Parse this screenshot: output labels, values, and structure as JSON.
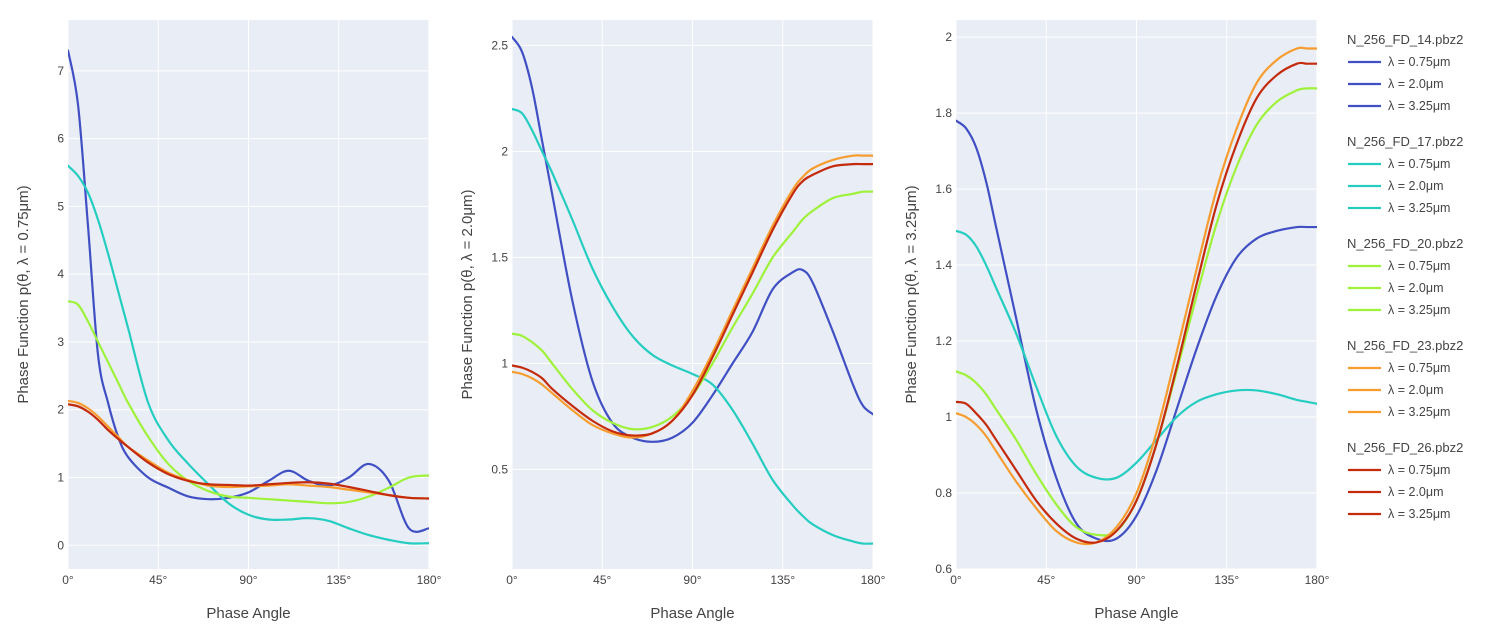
{
  "chart_data": {
    "type": "line",
    "x_unit": "°",
    "x_ticks": [
      0,
      45,
      90,
      135,
      180
    ],
    "x_tick_labels": [
      "0°",
      "45°",
      "90°",
      "135°",
      "180°"
    ],
    "x_range": [
      0,
      180
    ],
    "grid": true,
    "legend_position": "right",
    "colors": {
      "N_256_FD_14.pbz2": "#4050c4",
      "N_256_FD_17.pbz2": "#25cdc1",
      "N_256_FD_20.pbz2": "#9ef23a",
      "N_256_FD_23.pbz2": "#f79c2e",
      "N_256_FD_26.pbz2": "#c42a0c"
    },
    "legend": [
      {
        "title": "N_256_FD_14.pbz2",
        "items": [
          "λ = 0.75μm",
          "λ = 2.0μm",
          "λ = 3.25μm"
        ]
      },
      {
        "title": "N_256_FD_17.pbz2",
        "items": [
          "λ = 0.75μm",
          "λ = 2.0μm",
          "λ = 3.25μm"
        ]
      },
      {
        "title": "N_256_FD_20.pbz2",
        "items": [
          "λ = 0.75μm",
          "λ = 2.0μm",
          "λ = 3.25μm"
        ]
      },
      {
        "title": "N_256_FD_23.pbz2",
        "items": [
          "λ = 0.75μm",
          "λ = 2.0μm",
          "λ = 3.25μm"
        ]
      },
      {
        "title": "N_256_FD_26.pbz2",
        "items": [
          "λ = 0.75μm",
          "λ = 2.0μm",
          "λ = 3.25μm"
        ]
      }
    ],
    "panels": [
      {
        "xlabel": "Phase Angle",
        "ylabel": "Phase Function p(θ, λ = 0.75μm)",
        "ylim": [
          -0.35,
          7.75
        ],
        "y_ticks": [
          0,
          1,
          2,
          3,
          4,
          5,
          6,
          7
        ],
        "y_tick_labels": [
          "0",
          "1",
          "2",
          "3",
          "4",
          "5",
          "6",
          "7"
        ],
        "x": [
          0,
          5,
          10,
          15,
          20,
          25,
          30,
          40,
          50,
          60,
          70,
          80,
          90,
          100,
          110,
          120,
          130,
          140,
          150,
          160,
          170,
          180
        ],
        "series": [
          {
            "group": "N_256_FD_14.pbz2",
            "values": [
              7.3,
              6.5,
              4.7,
              2.8,
              2.1,
              1.6,
              1.3,
              1.0,
              0.85,
              0.72,
              0.68,
              0.7,
              0.78,
              0.95,
              1.1,
              0.95,
              0.88,
              1.0,
              1.2,
              0.95,
              0.25,
              0.25
            ]
          },
          {
            "group": "N_256_FD_17.pbz2",
            "values": [
              5.6,
              5.45,
              5.2,
              4.8,
              4.3,
              3.75,
              3.2,
              2.1,
              1.55,
              1.2,
              0.9,
              0.62,
              0.45,
              0.38,
              0.38,
              0.4,
              0.36,
              0.25,
              0.15,
              0.08,
              0.03,
              0.03
            ]
          },
          {
            "group": "N_256_FD_20.pbz2",
            "values": [
              3.6,
              3.55,
              3.3,
              3.0,
              2.7,
              2.4,
              2.1,
              1.6,
              1.2,
              0.95,
              0.8,
              0.72,
              0.7,
              0.68,
              0.66,
              0.64,
              0.62,
              0.64,
              0.72,
              0.85,
              1.0,
              1.03
            ]
          },
          {
            "group": "N_256_FD_23.pbz2",
            "values": [
              2.13,
              2.1,
              2.02,
              1.9,
              1.75,
              1.6,
              1.45,
              1.25,
              1.07,
              0.96,
              0.88,
              0.86,
              0.87,
              0.88,
              0.9,
              0.88,
              0.86,
              0.82,
              0.78,
              0.74,
              0.7,
              0.69
            ]
          },
          {
            "group": "N_256_FD_26.pbz2",
            "values": [
              2.08,
              2.05,
              1.97,
              1.85,
              1.7,
              1.57,
              1.45,
              1.22,
              1.05,
              0.95,
              0.9,
              0.89,
              0.88,
              0.9,
              0.92,
              0.93,
              0.91,
              0.86,
              0.8,
              0.74,
              0.7,
              0.69
            ]
          }
        ]
      },
      {
        "xlabel": "Phase Angle",
        "ylabel": "Phase Function p(θ, λ = 2.0μm)",
        "ylim": [
          0.03,
          2.62
        ],
        "y_ticks": [
          0.5,
          1,
          1.5,
          2,
          2.5
        ],
        "y_tick_labels": [
          "0.5",
          "1",
          "1.5",
          "2",
          "2.5"
        ],
        "x": [
          0,
          5,
          10,
          15,
          20,
          30,
          40,
          50,
          60,
          70,
          80,
          90,
          100,
          110,
          120,
          130,
          140,
          145,
          150,
          160,
          170,
          175,
          180
        ],
        "series": [
          {
            "group": "N_256_FD_14.pbz2",
            "values": [
              2.54,
              2.47,
              2.3,
              2.05,
              1.8,
              1.3,
              0.92,
              0.72,
              0.65,
              0.63,
              0.65,
              0.72,
              0.85,
              1.0,
              1.15,
              1.35,
              1.43,
              1.44,
              1.38,
              1.15,
              0.9,
              0.8,
              0.76
            ]
          },
          {
            "group": "N_256_FD_17.pbz2",
            "values": [
              2.2,
              2.18,
              2.1,
              2.0,
              1.9,
              1.68,
              1.45,
              1.27,
              1.13,
              1.04,
              0.99,
              0.95,
              0.9,
              0.78,
              0.62,
              0.45,
              0.33,
              0.28,
              0.24,
              0.19,
              0.16,
              0.15,
              0.15
            ]
          },
          {
            "group": "N_256_FD_20.pbz2",
            "values": [
              1.14,
              1.13,
              1.1,
              1.06,
              1.0,
              0.88,
              0.78,
              0.72,
              0.69,
              0.7,
              0.75,
              0.85,
              1.0,
              1.17,
              1.33,
              1.5,
              1.62,
              1.68,
              1.72,
              1.78,
              1.8,
              1.81,
              1.81
            ]
          },
          {
            "group": "N_256_FD_23.pbz2",
            "values": [
              0.96,
              0.95,
              0.93,
              0.9,
              0.86,
              0.78,
              0.71,
              0.67,
              0.65,
              0.67,
              0.73,
              0.87,
              1.05,
              1.25,
              1.45,
              1.65,
              1.82,
              1.88,
              1.92,
              1.96,
              1.98,
              1.98,
              1.98
            ]
          },
          {
            "group": "N_256_FD_26.pbz2",
            "values": [
              0.99,
              0.98,
              0.96,
              0.93,
              0.88,
              0.8,
              0.73,
              0.68,
              0.66,
              0.67,
              0.73,
              0.85,
              1.03,
              1.23,
              1.43,
              1.63,
              1.8,
              1.86,
              1.89,
              1.93,
              1.94,
              1.94,
              1.94
            ]
          }
        ]
      },
      {
        "xlabel": "Phase Angle",
        "ylabel": "Phase Function p(θ, λ = 3.25μm)",
        "ylim": [
          0.6,
          2.045
        ],
        "y_ticks": [
          0.6,
          0.8,
          1,
          1.2,
          1.4,
          1.6,
          1.8,
          2
        ],
        "y_tick_labels": [
          "0.6",
          "0.8",
          "1",
          "1.2",
          "1.4",
          "1.6",
          "1.8",
          "2"
        ],
        "x": [
          0,
          5,
          10,
          15,
          20,
          30,
          40,
          50,
          60,
          70,
          80,
          90,
          100,
          110,
          120,
          130,
          140,
          150,
          160,
          170,
          175,
          180
        ],
        "series": [
          {
            "group": "N_256_FD_14.pbz2",
            "values": [
              1.78,
              1.76,
              1.71,
              1.62,
              1.5,
              1.26,
              1.02,
              0.84,
              0.72,
              0.68,
              0.68,
              0.74,
              0.86,
              1.02,
              1.18,
              1.32,
              1.42,
              1.47,
              1.49,
              1.5,
              1.5,
              1.5
            ]
          },
          {
            "group": "N_256_FD_17.pbz2",
            "values": [
              1.49,
              1.48,
              1.45,
              1.4,
              1.34,
              1.22,
              1.08,
              0.95,
              0.87,
              0.84,
              0.84,
              0.88,
              0.94,
              1.0,
              1.04,
              1.06,
              1.07,
              1.07,
              1.06,
              1.045,
              1.04,
              1.035
            ]
          },
          {
            "group": "N_256_FD_20.pbz2",
            "values": [
              1.12,
              1.11,
              1.09,
              1.06,
              1.02,
              0.94,
              0.85,
              0.77,
              0.71,
              0.69,
              0.7,
              0.78,
              0.93,
              1.12,
              1.32,
              1.51,
              1.66,
              1.77,
              1.83,
              1.86,
              1.865,
              1.865
            ]
          },
          {
            "group": "N_256_FD_23.pbz2",
            "values": [
              1.01,
              1.0,
              0.98,
              0.95,
              0.91,
              0.83,
              0.76,
              0.7,
              0.67,
              0.67,
              0.71,
              0.8,
              0.96,
              1.17,
              1.39,
              1.6,
              1.76,
              1.88,
              1.94,
              1.97,
              1.97,
              1.97
            ]
          },
          {
            "group": "N_256_FD_26.pbz2",
            "values": [
              1.04,
              1.035,
              1.01,
              0.98,
              0.94,
              0.86,
              0.78,
              0.72,
              0.68,
              0.67,
              0.7,
              0.78,
              0.93,
              1.13,
              1.35,
              1.56,
              1.72,
              1.84,
              1.9,
              1.93,
              1.93,
              1.93
            ]
          }
        ]
      }
    ]
  }
}
